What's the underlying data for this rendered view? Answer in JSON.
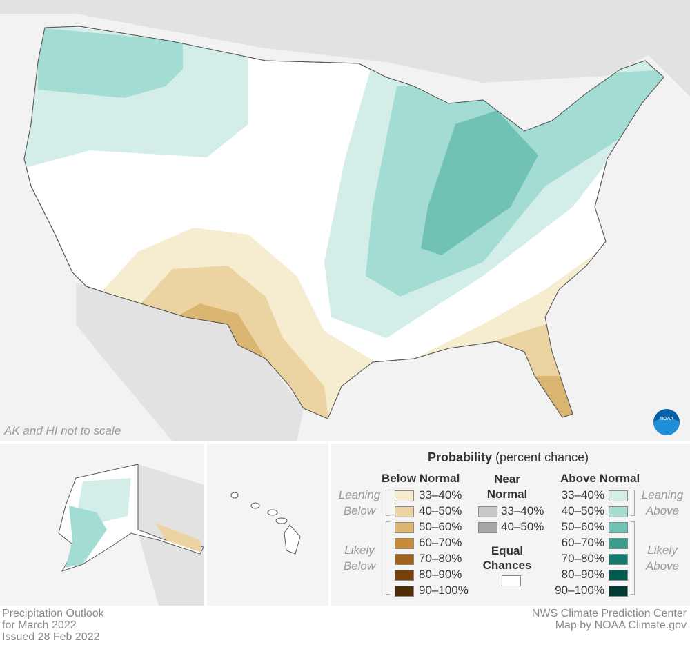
{
  "map": {
    "note": "AK and HI not to scale",
    "logo": "NOAA",
    "colors": {
      "land_us": "#ffffff",
      "land_other": "#e2e2e2",
      "background": "#f2f2f2",
      "borders": "#555555"
    }
  },
  "legend": {
    "title": "Probability",
    "title_suffix": "(percent chance)",
    "below": {
      "heading": "Below Normal",
      "leaning": "Leaning Below",
      "likely": "Likely Below",
      "items": [
        {
          "label": "33–40%",
          "color": "#f6ecd0"
        },
        {
          "label": "40–50%",
          "color": "#ecd4a2"
        },
        {
          "label": "50–60%",
          "color": "#dbb670"
        },
        {
          "label": "60–70%",
          "color": "#c68c3a"
        },
        {
          "label": "70–80%",
          "color": "#9e631c"
        },
        {
          "label": "80–90%",
          "color": "#774009"
        },
        {
          "label": "90–100%",
          "color": "#4f2c06"
        }
      ]
    },
    "near": {
      "heading": "Near Normal",
      "items": [
        {
          "label": "33–40%",
          "color": "#c8c8c8"
        },
        {
          "label": "40–50%",
          "color": "#a6a6a6"
        }
      ],
      "equal_heading": "Equal Chances",
      "equal_color": "#ffffff"
    },
    "above": {
      "heading": "Above Normal",
      "leaning": "Leaning Above",
      "likely": "Likely Above",
      "items": [
        {
          "label": "33–40%",
          "color": "#d3ede8"
        },
        {
          "label": "40–50%",
          "color": "#a3dcd2"
        },
        {
          "label": "50–60%",
          "color": "#6fc2b4"
        },
        {
          "label": "60–70%",
          "color": "#3d9c90"
        },
        {
          "label": "70–80%",
          "color": "#147a70"
        },
        {
          "label": "80–90%",
          "color": "#005a50"
        },
        {
          "label": "90–100%",
          "color": "#003a32"
        }
      ]
    }
  },
  "footer": {
    "left": [
      "Precipitation Outlook",
      "for March 2022",
      "Issued 28 Feb 2022"
    ],
    "right": [
      "NWS Climate Prediction Center",
      "Map by NOAA Climate.gov"
    ]
  }
}
